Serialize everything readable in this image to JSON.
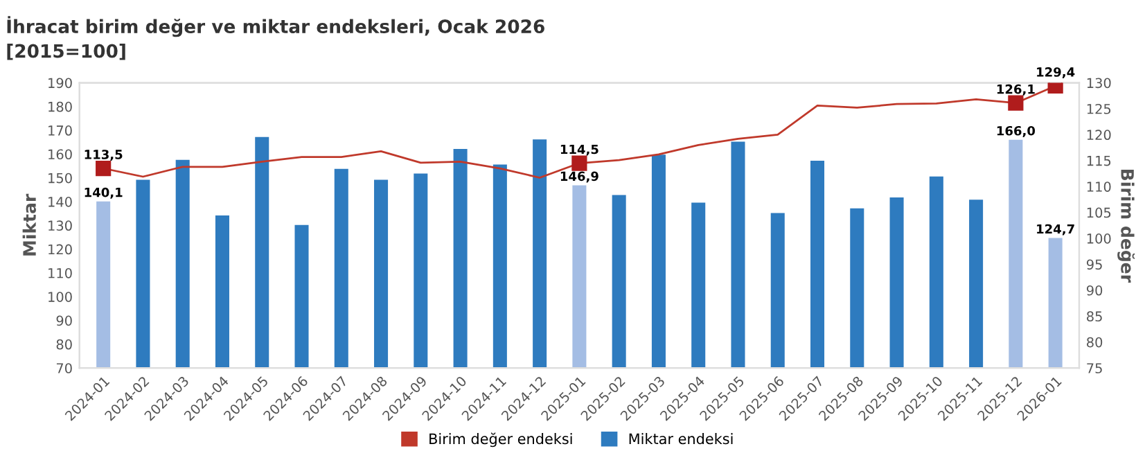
{
  "chart_data": {
    "type": "bar",
    "title": "İhracat birim değer ve miktar endeksleri, Ocak 2026",
    "subtitle": "[2015=100]",
    "ylabel": "Miktar",
    "y2label": "Birim değer",
    "categories": [
      "2024-01",
      "2024-02",
      "2024-03",
      "2024-04",
      "2024-05",
      "2024-06",
      "2024-07",
      "2024-08",
      "2024-09",
      "2024-10",
      "2024-11",
      "2024-12",
      "2025-01",
      "2025-02",
      "2025-03",
      "2025-04",
      "2025-05",
      "2025-06",
      "2025-07",
      "2025-08",
      "2025-09",
      "2025-10",
      "2025-11",
      "2025-12",
      "2026-01"
    ],
    "series": [
      {
        "name": "Birim değer endeksi",
        "type": "line",
        "axis": "y2",
        "color": "#c0392b",
        "values": [
          113.5,
          111.9,
          113.8,
          113.8,
          114.8,
          115.7,
          115.7,
          116.8,
          114.6,
          114.8,
          113.5,
          111.7,
          114.5,
          115.1,
          116.2,
          118.0,
          119.2,
          120.0,
          125.6,
          125.2,
          125.9,
          126.0,
          126.8,
          126.1,
          129.4
        ],
        "value_labels": [
          "113,5",
          null,
          null,
          null,
          null,
          null,
          null,
          null,
          null,
          null,
          null,
          null,
          "114,5",
          null,
          null,
          null,
          null,
          null,
          null,
          null,
          null,
          null,
          null,
          "126,1",
          "129,4"
        ]
      },
      {
        "name": "Miktar endeksi",
        "color": "#2e7bbf",
        "colors": [
          "#a4bde4",
          "#2e7bbf",
          "#2e7bbf",
          "#2e7bbf",
          "#2e7bbf",
          "#2e7bbf",
          "#2e7bbf",
          "#2e7bbf",
          "#2e7bbf",
          "#2e7bbf",
          "#2e7bbf",
          "#2e7bbf",
          "#a4bde4",
          "#2e7bbf",
          "#2e7bbf",
          "#2e7bbf",
          "#2e7bbf",
          "#2e7bbf",
          "#2e7bbf",
          "#2e7bbf",
          "#2e7bbf",
          "#2e7bbf",
          "#2e7bbf",
          "#a4bde4",
          "#a4bde4"
        ],
        "values": [
          140.1,
          149.2,
          157.6,
          134.2,
          167.2,
          130.2,
          153.8,
          149.2,
          151.8,
          162.2,
          155.6,
          166.2,
          146.9,
          142.8,
          159.8,
          139.6,
          165.2,
          135.2,
          157.2,
          137.2,
          141.8,
          150.6,
          140.8,
          166.0,
          124.7
        ],
        "value_labels": [
          "140,1",
          null,
          null,
          null,
          null,
          null,
          null,
          null,
          null,
          null,
          null,
          null,
          "146,9",
          null,
          null,
          null,
          null,
          null,
          null,
          null,
          null,
          null,
          null,
          "166,0",
          "124,7"
        ]
      }
    ],
    "ylim": [
      70,
      190
    ],
    "yticks": [
      70,
      80,
      90,
      100,
      110,
      120,
      130,
      140,
      150,
      160,
      170,
      180,
      190
    ],
    "y2lim": [
      75,
      130
    ],
    "y2ticks": [
      75,
      80,
      85,
      90,
      95,
      100,
      105,
      110,
      115,
      120,
      125,
      130
    ],
    "grid": false,
    "legend": "bottom"
  }
}
